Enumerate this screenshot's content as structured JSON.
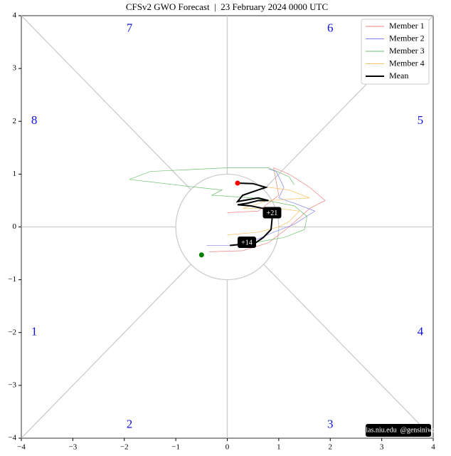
{
  "chart_data": {
    "type": "line",
    "title": "CFSv2 GWO Forecast  |  23 February 2024 0000 UTC",
    "xlim": [
      -4,
      4
    ],
    "ylim": [
      -4,
      4
    ],
    "xticks": [
      {
        "value": -4,
        "label": "−4"
      },
      {
        "value": -3,
        "label": "−3"
      },
      {
        "value": -2,
        "label": "−2"
      },
      {
        "value": -1,
        "label": "−1"
      },
      0,
      1,
      2,
      3,
      4
    ],
    "yticks": [
      {
        "value": -4,
        "label": "−4"
      },
      {
        "value": -3,
        "label": "−3"
      },
      {
        "value": -2,
        "label": "−2"
      },
      {
        "value": -1,
        "label": "−1"
      },
      0,
      1,
      2,
      3,
      4
    ],
    "legend": "upper right",
    "series": [
      {
        "name": "Member 1",
        "color": "#f08080",
        "width": 0.7,
        "x": [
          -0.35,
          0.3,
          0.8,
          1.2,
          1.6,
          1.9,
          1.6,
          1.2,
          0.9,
          1.0,
          0.6,
          0.0
        ],
        "values": [
          -0.47,
          -0.45,
          -0.3,
          0.0,
          0.35,
          0.5,
          0.75,
          1.0,
          1.12,
          0.6,
          0.3,
          0.27
        ]
      },
      {
        "name": "Member 2",
        "color": "#8080f0",
        "width": 0.7,
        "x": [
          -0.4,
          0.3,
          0.9,
          1.3,
          1.7,
          1.3,
          1.0,
          1.1,
          1.0,
          0.95,
          0.8
        ],
        "values": [
          -0.35,
          -0.35,
          -0.1,
          0.05,
          0.3,
          0.45,
          0.55,
          0.75,
          0.95,
          1.05,
          1.1
        ]
      },
      {
        "name": "Member 3",
        "color": "#70c070",
        "width": 0.7,
        "x": [
          0.05,
          0.5,
          1.1,
          1.5,
          1.55,
          1.3,
          0.5,
          -0.3,
          -0.1,
          -0.6,
          -1.9,
          -1.5,
          0.0,
          0.8,
          1.2,
          1.3
        ],
        "values": [
          -0.35,
          -0.3,
          -0.2,
          -0.05,
          0.2,
          0.4,
          0.55,
          0.6,
          0.7,
          0.75,
          0.9,
          1.05,
          1.12,
          1.12,
          0.95,
          0.8
        ]
      },
      {
        "name": "Member 4",
        "color": "#f5c060",
        "width": 0.7,
        "x": [
          0.0,
          0.6,
          1.0,
          1.2,
          1.4,
          1.0,
          0.3,
          0.8,
          1.6,
          1.2,
          0.8
        ],
        "values": [
          -0.15,
          -0.1,
          0.0,
          0.1,
          0.3,
          0.35,
          0.35,
          0.5,
          0.55,
          0.7,
          0.75
        ]
      },
      {
        "name": "Mean",
        "color": "#000000",
        "width": 2,
        "x": [
          0.05,
          0.35,
          0.55,
          0.7,
          0.85,
          0.87,
          0.85,
          0.7,
          0.45,
          0.2,
          0.4,
          0.6,
          0.8,
          0.6,
          0.2,
          0.3,
          0.6,
          0.75,
          0.5,
          0.2
        ],
        "values": [
          -0.35,
          -0.32,
          -0.3,
          -0.2,
          -0.05,
          0.15,
          0.3,
          0.35,
          0.4,
          0.42,
          0.45,
          0.5,
          0.5,
          0.55,
          0.48,
          0.6,
          0.7,
          0.75,
          0.82,
          0.83
        ]
      }
    ],
    "start_point": {
      "x": -0.5,
      "y": -0.53,
      "color": "green"
    },
    "end_color": "red",
    "annotations": [
      "+14",
      "+21"
    ],
    "phase_labels": [
      "1",
      "2",
      "3",
      "4",
      "5",
      "6",
      "7",
      "8"
    ],
    "credit": "atlas.niu.edu  @gensiniwx"
  }
}
